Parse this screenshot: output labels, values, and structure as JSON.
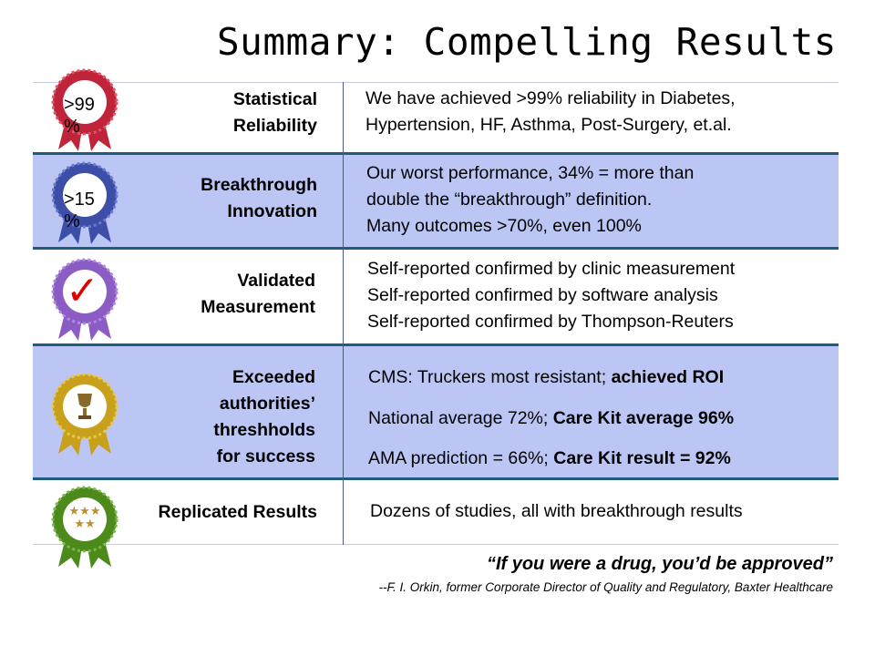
{
  "title": "Summary: Compelling Results",
  "rows": [
    {
      "label_lines": [
        "Statistical",
        "Reliability"
      ],
      "badge": ">99\n%",
      "badge_lines": [
        ">99",
        "%"
      ],
      "ribbon_color": "#c0243a",
      "desc_lines": [
        "We have achieved >99% reliability in Diabetes,",
        "Hypertension, HF, Asthma, Post-Surgery, et.al."
      ]
    },
    {
      "label_lines": [
        "Breakthrough",
        "Innovation"
      ],
      "badge_lines": [
        ">15",
        "%"
      ],
      "ribbon_color": "#3d4ea8",
      "desc_lines": [
        "Our worst performance, 34% = more than",
        "double the “breakthrough” definition.",
        "Many outcomes  >70%, even 100%"
      ]
    },
    {
      "label_lines": [
        "Validated",
        "Measurement"
      ],
      "badge_symbol": "✓",
      "ribbon_color": "#8a5cc4",
      "desc_lines": [
        "Self-reported confirmed by clinic measurement",
        "Self-reported confirmed by software analysis",
        "Self-reported confirmed by Thompson-Reuters"
      ]
    },
    {
      "label_lines": [
        "Exceeded",
        "authorities’",
        "threshholds",
        "for success"
      ],
      "ribbon_color": "#c8a01c",
      "desc_items": [
        {
          "plain": "CMS: Truckers most resistant; ",
          "bold": "achieved ROI"
        },
        {
          "plain": "National average 72%; ",
          "bold": "Care Kit average 96%"
        },
        {
          "plain": "AMA prediction = 66%; ",
          "bold": "Care Kit result = 92%"
        }
      ]
    },
    {
      "label_lines": [
        "Replicated Results"
      ],
      "ribbon_color": "#4d8a1c",
      "desc_lines": [
        "Dozens of studies, all with breakthrough results"
      ]
    }
  ],
  "quote": "“If you were a drug, you’d be approved”",
  "attribution": "--F. I. Orkin, former Corporate Director of Quality and Regulatory, Baxter Healthcare"
}
